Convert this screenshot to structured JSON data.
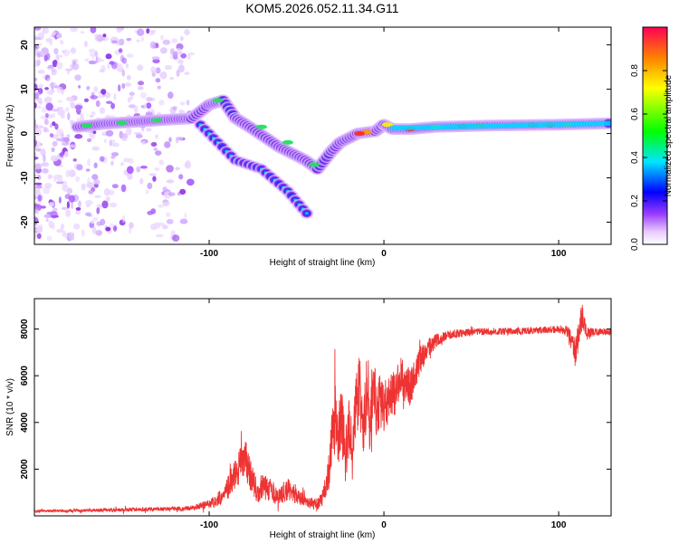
{
  "title": "KOM5.2026.052.11.34.G11",
  "colors": {
    "snr_line": "#ee3333",
    "frame": "#000000",
    "background": "#ffffff"
  },
  "chart_data": [
    {
      "type": "heatmap",
      "title": "KOM5.2026.052.11.34.G11",
      "xlabel": "Height of straight line (km)",
      "ylabel": "Frequency (Hz)",
      "xlim": [
        -200,
        130
      ],
      "ylim": [
        -25,
        24
      ],
      "xticks": [
        -100,
        0,
        100
      ],
      "yticks": [
        20,
        10,
        0,
        -10,
        -20
      ],
      "colorbar": {
        "label": "Normalized spectral amplitude",
        "range": [
          0,
          1
        ],
        "ticks": [
          0.0,
          0.2,
          0.4,
          0.6,
          0.8
        ],
        "tick_labels": [
          "0.0",
          "0.2",
          "0.4",
          "0.6",
          "0.8"
        ]
      },
      "features": [
        {
          "name": "main ridge",
          "points": [
            [
              -175,
              1.5
            ],
            [
              -160,
              2.2
            ],
            [
              -140,
              2.7
            ],
            [
              -120,
              3.2
            ],
            [
              -110,
              3.4
            ],
            [
              -100,
              6.5
            ],
            [
              -92,
              7.5
            ],
            [
              -85,
              3.5
            ],
            [
              -75,
              1
            ],
            [
              -60,
              -3
            ],
            [
              -45,
              -6
            ],
            [
              -38,
              -8
            ],
            [
              -30,
              -4
            ],
            [
              -25,
              -2
            ],
            [
              -15,
              0
            ],
            [
              -5,
              0.5
            ],
            [
              0,
              2
            ],
            [
              5,
              1
            ],
            [
              15,
              1
            ],
            [
              30,
              1.5
            ],
            [
              60,
              1.8
            ],
            [
              100,
              2
            ],
            [
              130,
              2.3
            ]
          ]
        },
        {
          "name": "lower branch",
          "points": [
            [
              -105,
              2
            ],
            [
              -95,
              -2
            ],
            [
              -85,
              -6
            ],
            [
              -70,
              -8
            ],
            [
              -55,
              -13
            ],
            [
              -42,
              -19
            ]
          ]
        }
      ]
    },
    {
      "type": "line",
      "xlabel": "Height of straight line (km)",
      "ylabel": "SNR (10 * v/v)",
      "xlim": [
        -200,
        130
      ],
      "ylim": [
        0,
        9300
      ],
      "xticks": [
        -100,
        0,
        100
      ],
      "yticks": [
        2000,
        4000,
        6000,
        8000
      ],
      "series": [
        {
          "name": "SNR",
          "color": "#ee3333",
          "x": [
            -200,
            -180,
            -160,
            -140,
            -120,
            -110,
            -100,
            -95,
            -90,
            -85,
            -82,
            -80,
            -78,
            -75,
            -72,
            -70,
            -65,
            -60,
            -55,
            -50,
            -45,
            -40,
            -38,
            -35,
            -32,
            -30,
            -28,
            -26,
            -24,
            -22,
            -20,
            -18,
            -16,
            -14,
            -12,
            -10,
            -8,
            -6,
            -4,
            -2,
            0,
            5,
            10,
            15,
            20,
            25,
            30,
            35,
            40,
            50,
            60,
            70,
            80,
            90,
            100,
            105,
            108,
            110,
            112,
            114,
            116,
            120,
            125,
            130
          ],
          "y": [
            200,
            220,
            250,
            270,
            300,
            330,
            500,
            700,
            1100,
            1800,
            2300,
            2600,
            2100,
            1500,
            900,
            1300,
            1100,
            800,
            1200,
            900,
            700,
            500,
            500,
            800,
            1600,
            3000,
            4200,
            3500,
            4000,
            2400,
            3700,
            2800,
            4600,
            5600,
            3200,
            5200,
            3900,
            5700,
            4400,
            5000,
            4700,
            5100,
            5900,
            5500,
            6500,
            7200,
            7500,
            7700,
            7800,
            7850,
            7900,
            7900,
            7920,
            7950,
            8000,
            7900,
            7400,
            6900,
            8200,
            8500,
            7800,
            7850,
            7900,
            7850
          ],
          "spread": [
            60,
            60,
            70,
            80,
            90,
            110,
            200,
            300,
            450,
            700,
            800,
            900,
            800,
            600,
            450,
            550,
            500,
            400,
            500,
            400,
            300,
            250,
            250,
            350,
            700,
            1200,
            1500,
            1400,
            1500,
            1200,
            1400,
            1300,
            1500,
            1500,
            1400,
            1500,
            1300,
            1400,
            1200,
            1200,
            1100,
            1000,
            900,
            800,
            600,
            400,
            300,
            200,
            180,
            160,
            150,
            150,
            150,
            150,
            160,
            250,
            500,
            700,
            800,
            600,
            300,
            180,
            150,
            150
          ]
        }
      ]
    }
  ]
}
